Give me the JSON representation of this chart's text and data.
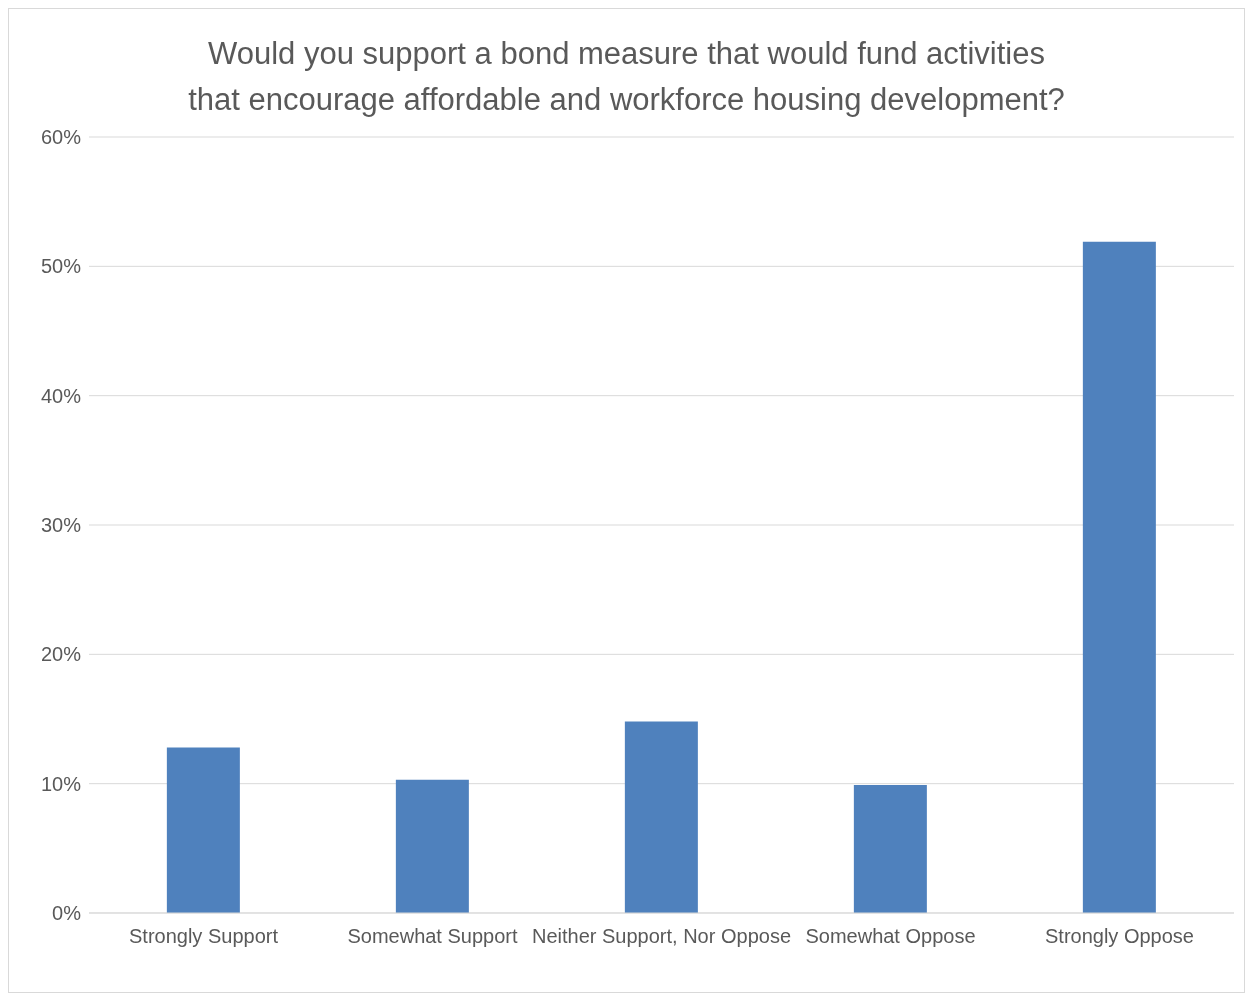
{
  "chart_data": {
    "type": "bar",
    "title": "Would you support a bond measure that would fund activities that encourage affordable and workforce housing development?",
    "categories": [
      "Strongly Support",
      "Somewhat Support",
      "Neither Support, Nor Oppose",
      "Somewhat Oppose",
      "Strongly Oppose"
    ],
    "values": [
      12.8,
      10.3,
      14.8,
      9.9,
      51.9
    ],
    "color": "#4f81bd",
    "ylim": [
      0,
      60
    ],
    "yticks": [
      {
        "value": 0,
        "label": "0%"
      },
      {
        "value": 10,
        "label": "10%"
      },
      {
        "value": 20,
        "label": "20%"
      },
      {
        "value": 30,
        "label": "30%"
      },
      {
        "value": 40,
        "label": "40%"
      },
      {
        "value": 50,
        "label": "50%"
      },
      {
        "value": 60,
        "label": "60%"
      }
    ],
    "grid": "y",
    "legend": false
  }
}
